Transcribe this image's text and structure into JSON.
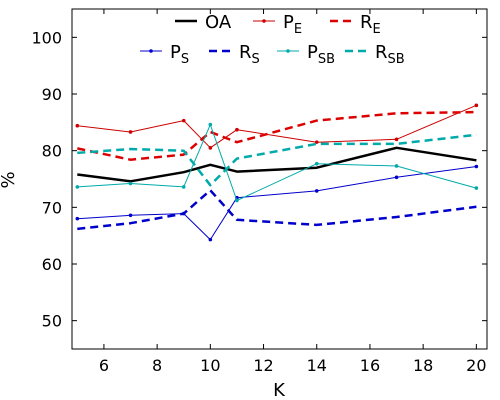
{
  "chart_data": {
    "type": "line",
    "xlabel": "K",
    "ylabel": "%",
    "xlim": [
      4.8,
      20.4
    ],
    "ylim": [
      45,
      105
    ],
    "xticks": [
      6,
      8,
      10,
      12,
      14,
      16,
      18,
      20
    ],
    "yticks": [
      50,
      60,
      70,
      80,
      90,
      100
    ],
    "grid": false,
    "legend_position": "top",
    "x": [
      5,
      7,
      9,
      10,
      11,
      14,
      17,
      20
    ],
    "series": [
      {
        "name_main": "OA",
        "name_sub": "",
        "color": "#000000",
        "dash": "solid",
        "width": 2.5,
        "markers": false,
        "values": [
          75.8,
          74.6,
          76.2,
          77.5,
          76.3,
          77.0,
          80.5,
          78.3
        ]
      },
      {
        "name_main": "P",
        "name_sub": "E",
        "color": "#cc0000",
        "dash": "solid",
        "width": 1,
        "markers": true,
        "values": [
          84.4,
          83.3,
          85.3,
          80.5,
          83.7,
          81.5,
          82.0,
          88.0
        ]
      },
      {
        "name_main": "R",
        "name_sub": "E",
        "color": "#dd0000",
        "dash": "dashed",
        "width": 2.5,
        "markers": false,
        "values": [
          80.4,
          78.4,
          79.3,
          83.3,
          81.5,
          85.3,
          86.6,
          86.8
        ]
      },
      {
        "name_main": "P",
        "name_sub": "S",
        "color": "#0000cc",
        "dash": "solid",
        "width": 1,
        "markers": true,
        "values": [
          68.0,
          68.6,
          68.9,
          64.3,
          71.7,
          72.9,
          75.3,
          77.2
        ]
      },
      {
        "name_main": "R",
        "name_sub": "S",
        "color": "#0000cc",
        "dash": "dashed",
        "width": 2.5,
        "markers": false,
        "values": [
          66.2,
          67.2,
          68.9,
          73.0,
          67.8,
          66.9,
          68.3,
          70.1
        ]
      },
      {
        "name_main": "P",
        "name_sub": "SB",
        "color": "#00aaaa",
        "dash": "solid",
        "width": 1,
        "markers": true,
        "values": [
          73.6,
          74.2,
          73.6,
          84.6,
          71.2,
          77.7,
          77.3,
          73.4
        ]
      },
      {
        "name_main": "R",
        "name_sub": "SB",
        "color": "#00aaaa",
        "dash": "dashed",
        "width": 2.5,
        "markers": false,
        "values": [
          79.6,
          80.3,
          80.0,
          73.9,
          78.6,
          81.2,
          81.2,
          82.8
        ]
      }
    ]
  }
}
